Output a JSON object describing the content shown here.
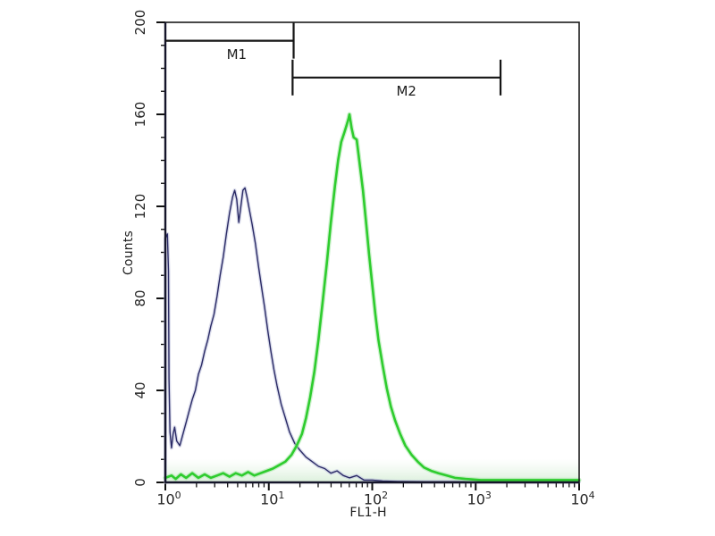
{
  "figure": {
    "background": "#ffffff",
    "border_color": "#1a1a1a",
    "tick_color": "#111111",
    "gate_color": "#141414"
  },
  "chart_data": {
    "type": "line",
    "subtype": "flow-cytometry-histogram",
    "title": "",
    "xlabel": "FL1-H",
    "ylabel": "Counts",
    "x_scale": "log10",
    "xlim_log": [
      0,
      4
    ],
    "ylim": [
      0,
      200
    ],
    "x_decades": [
      0,
      1,
      2,
      3,
      4
    ],
    "x_tick_base": "10",
    "y_ticks": [
      0,
      40,
      80,
      120,
      160,
      200
    ],
    "y_minor_step": 10,
    "grid": "off",
    "legend": "none",
    "series": [
      {
        "name": "blue-control-histogram",
        "color": "#2b2b66",
        "glow": "#b9bddb",
        "width": 1.4,
        "points": [
          [
            0.0,
            0
          ],
          [
            0.0,
            106
          ],
          [
            0.02,
            108
          ],
          [
            0.03,
            92
          ],
          [
            0.035,
            45
          ],
          [
            0.045,
            22
          ],
          [
            0.06,
            15
          ],
          [
            0.075,
            21
          ],
          [
            0.09,
            24
          ],
          [
            0.11,
            18
          ],
          [
            0.14,
            16
          ],
          [
            0.17,
            21
          ],
          [
            0.2,
            26
          ],
          [
            0.23,
            31
          ],
          [
            0.26,
            36
          ],
          [
            0.29,
            40
          ],
          [
            0.32,
            47
          ],
          [
            0.35,
            51
          ],
          [
            0.38,
            57
          ],
          [
            0.41,
            62
          ],
          [
            0.44,
            68
          ],
          [
            0.47,
            73
          ],
          [
            0.5,
            81
          ],
          [
            0.53,
            90
          ],
          [
            0.56,
            98
          ],
          [
            0.59,
            108
          ],
          [
            0.62,
            117
          ],
          [
            0.65,
            124
          ],
          [
            0.67,
            127
          ],
          [
            0.69,
            123
          ],
          [
            0.71,
            113
          ],
          [
            0.73,
            120
          ],
          [
            0.75,
            127
          ],
          [
            0.77,
            128
          ],
          [
            0.79,
            124
          ],
          [
            0.81,
            119
          ],
          [
            0.84,
            112
          ],
          [
            0.87,
            104
          ],
          [
            0.9,
            94
          ],
          [
            0.93,
            85
          ],
          [
            0.96,
            76
          ],
          [
            0.99,
            66
          ],
          [
            1.02,
            57
          ],
          [
            1.05,
            49
          ],
          [
            1.08,
            42
          ],
          [
            1.12,
            34
          ],
          [
            1.16,
            28
          ],
          [
            1.2,
            22
          ],
          [
            1.25,
            17
          ],
          [
            1.3,
            14
          ],
          [
            1.36,
            11
          ],
          [
            1.42,
            9
          ],
          [
            1.48,
            7
          ],
          [
            1.54,
            6
          ],
          [
            1.6,
            4
          ],
          [
            1.66,
            5
          ],
          [
            1.72,
            3
          ],
          [
            1.78,
            2
          ],
          [
            1.85,
            3
          ],
          [
            1.92,
            1
          ],
          [
            2.0,
            1
          ],
          [
            2.1,
            0.6
          ],
          [
            2.25,
            0.4
          ],
          [
            2.5,
            0.3
          ],
          [
            3.0,
            0.3
          ],
          [
            4.0,
            0.3
          ]
        ]
      },
      {
        "name": "green-stained-histogram",
        "color": "#2ecc2e",
        "glow": "#a5e7a5",
        "width": 2.6,
        "points": [
          [
            0.0,
            2
          ],
          [
            0.06,
            3
          ],
          [
            0.1,
            1.5
          ],
          [
            0.15,
            3.5
          ],
          [
            0.2,
            2
          ],
          [
            0.26,
            4
          ],
          [
            0.32,
            2
          ],
          [
            0.38,
            3.5
          ],
          [
            0.44,
            2
          ],
          [
            0.5,
            3
          ],
          [
            0.56,
            4
          ],
          [
            0.62,
            2.5
          ],
          [
            0.68,
            4
          ],
          [
            0.74,
            3
          ],
          [
            0.8,
            4.5
          ],
          [
            0.86,
            3
          ],
          [
            0.92,
            4
          ],
          [
            0.98,
            5
          ],
          [
            1.04,
            6
          ],
          [
            1.1,
            7.5
          ],
          [
            1.16,
            9
          ],
          [
            1.22,
            12
          ],
          [
            1.27,
            16
          ],
          [
            1.32,
            21
          ],
          [
            1.36,
            28
          ],
          [
            1.4,
            37
          ],
          [
            1.44,
            48
          ],
          [
            1.48,
            62
          ],
          [
            1.52,
            78
          ],
          [
            1.56,
            95
          ],
          [
            1.6,
            113
          ],
          [
            1.64,
            129
          ],
          [
            1.67,
            140
          ],
          [
            1.7,
            148
          ],
          [
            1.73,
            152
          ],
          [
            1.75,
            155
          ],
          [
            1.77,
            158
          ],
          [
            1.78,
            160
          ],
          [
            1.8,
            154
          ],
          [
            1.82,
            150
          ],
          [
            1.85,
            149
          ],
          [
            1.88,
            138
          ],
          [
            1.91,
            127
          ],
          [
            1.94,
            113
          ],
          [
            1.97,
            99
          ],
          [
            2.0,
            86
          ],
          [
            2.03,
            73
          ],
          [
            2.06,
            62
          ],
          [
            2.1,
            51
          ],
          [
            2.14,
            41
          ],
          [
            2.18,
            33
          ],
          [
            2.22,
            27
          ],
          [
            2.27,
            21
          ],
          [
            2.32,
            16
          ],
          [
            2.38,
            12
          ],
          [
            2.44,
            9
          ],
          [
            2.5,
            6.5
          ],
          [
            2.57,
            5
          ],
          [
            2.64,
            4
          ],
          [
            2.72,
            3
          ],
          [
            2.8,
            2
          ],
          [
            2.9,
            1.5
          ],
          [
            3.05,
            1
          ],
          [
            3.3,
            1
          ],
          [
            3.6,
            1
          ],
          [
            4.0,
            1
          ]
        ]
      }
    ],
    "gates": [
      {
        "label": "M1",
        "x1_log": 0.0,
        "x2_log": 1.24,
        "y_counts": 192,
        "end_ticks": [
          "right"
        ],
        "label_log_x": 0.69,
        "label_dy": 15
      },
      {
        "label": "M2",
        "x1_log": 1.23,
        "x2_log": 3.24,
        "y_counts": 176,
        "end_ticks": [
          "left",
          "right"
        ],
        "label_log_x": 2.33,
        "label_dy": 15
      }
    ]
  }
}
